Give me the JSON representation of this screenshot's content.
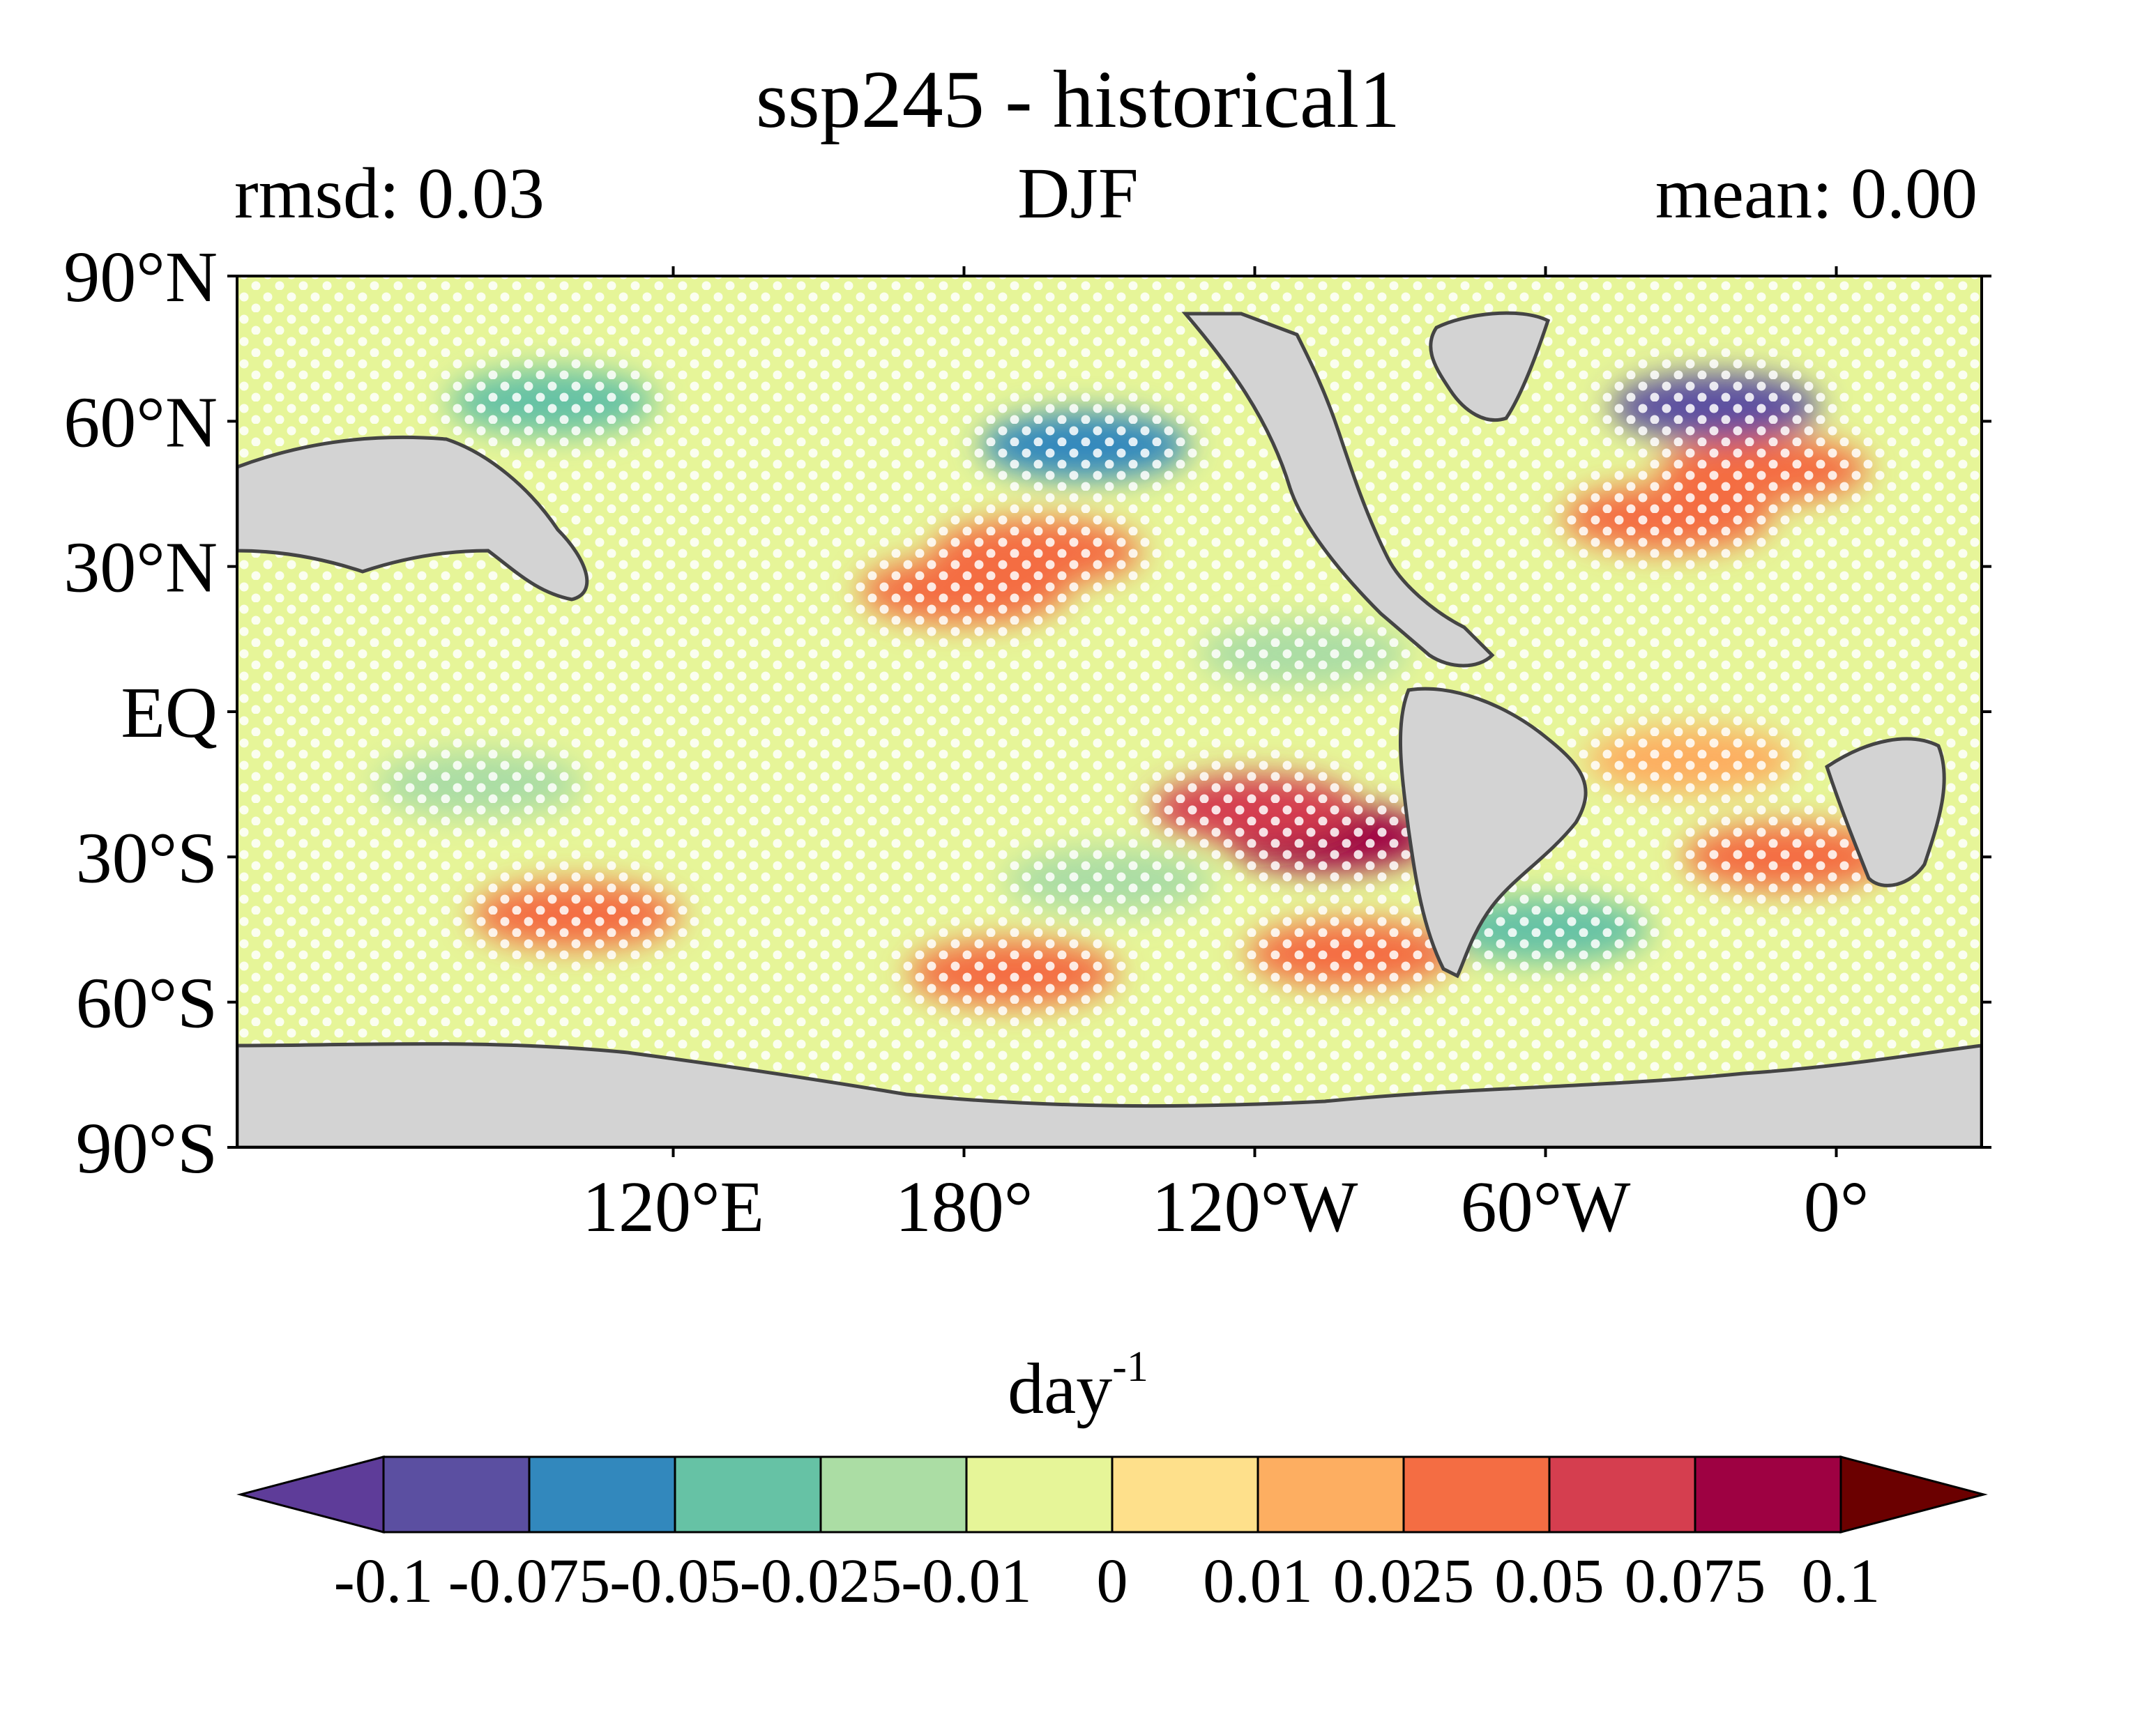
{
  "chart_data": {
    "type": "heatmap",
    "title": "ssp245 - historical1",
    "left_label": "rmsd: 0.03",
    "center_label": "DJF",
    "right_label": "mean: 0.00",
    "projection": "equirectangular, centered on 150°W",
    "lon_range": [
      30,
      390
    ],
    "lat_range": [
      -90,
      90
    ],
    "y_ticks": [
      "90°N",
      "60°N",
      "30°N",
      "EQ",
      "30°S",
      "60°S",
      "90°S"
    ],
    "x_ticks": [
      "120°E",
      "180°",
      "120°W",
      "60°W",
      "0°"
    ],
    "grid": false,
    "land_color": "#d3d3d3",
    "colorbar": {
      "units_base": "day",
      "units_exp": "-1",
      "levels": [
        "-0.1",
        "-0.075",
        "-0.05",
        "-0.025",
        "-0.01",
        "0",
        "0.01",
        "0.025",
        "0.05",
        "0.075",
        "0.1"
      ],
      "colors": [
        "#5e3c99",
        "#5b4fa1",
        "#3288bd",
        "#66c2a5",
        "#abdda4",
        "#e6f598",
        "#fee08b",
        "#fdae61",
        "#f46d43",
        "#d53e4f",
        "#9e0142",
        "#6b0000"
      ],
      "extend": "both"
    },
    "stippling": "white dots over much of the ocean",
    "anomaly_patches": [
      {
        "lon": 195,
        "lat": 33,
        "value": 0.03
      },
      {
        "lon": 180,
        "lat": 25,
        "value": 0.035
      },
      {
        "lon": 255,
        "lat": -26,
        "value": 0.085
      },
      {
        "lon": 240,
        "lat": -20,
        "value": 0.05
      },
      {
        "lon": 325,
        "lat": 40,
        "value": 0.04
      },
      {
        "lon": 345,
        "lat": 50,
        "value": 0.03
      },
      {
        "lon": 100,
        "lat": -42,
        "value": 0.04
      },
      {
        "lon": 190,
        "lat": -54,
        "value": 0.045
      },
      {
        "lon": 260,
        "lat": -50,
        "value": 0.03
      },
      {
        "lon": 350,
        "lat": -30,
        "value": 0.04
      },
      {
        "lon": 330,
        "lat": -10,
        "value": 0.02
      },
      {
        "lon": 205,
        "lat": 55,
        "value": -0.06
      },
      {
        "lon": 335,
        "lat": 63,
        "value": -0.09
      },
      {
        "lon": 95,
        "lat": 64,
        "value": -0.04
      },
      {
        "lon": 250,
        "lat": 12,
        "value": -0.02
      },
      {
        "lon": 210,
        "lat": -35,
        "value": -0.025
      },
      {
        "lon": 300,
        "lat": -45,
        "value": -0.03
      },
      {
        "lon": 80,
        "lat": -15,
        "value": -0.02
      }
    ]
  }
}
